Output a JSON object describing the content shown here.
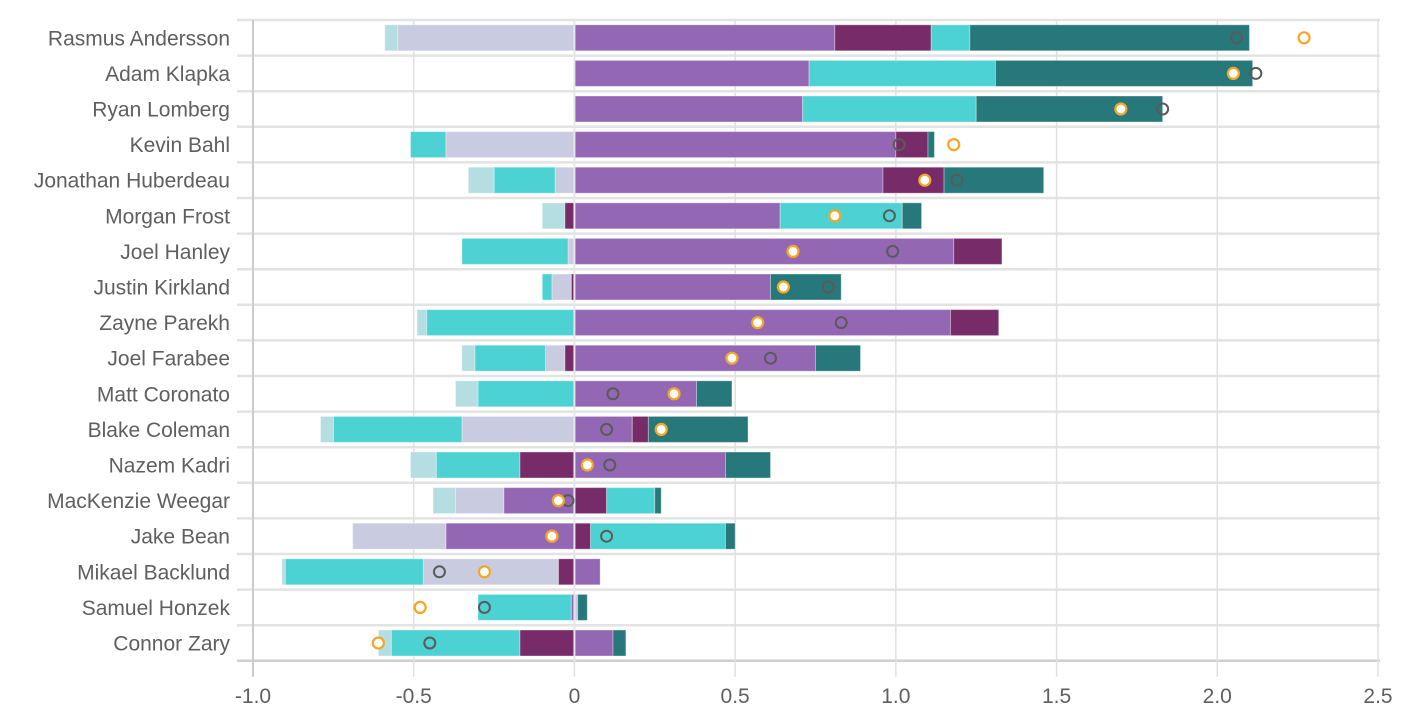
{
  "chart_data": {
    "type": "bar",
    "orientation": "horizontal",
    "stacked": "diverging",
    "title": "",
    "xlabel": "",
    "ylabel": "",
    "xlim": [
      -1.0,
      2.5
    ],
    "xticks": [
      -1.0,
      -0.5,
      0,
      0.5,
      1.0,
      1.5,
      2.0,
      2.5
    ],
    "xtick_labels": [
      "-1.0",
      "-0.5",
      "0",
      "0.5",
      "1.0",
      "1.5",
      "2.0",
      "2.5"
    ],
    "grid": true,
    "legend": "none",
    "segment_colors": {
      "A": "#9467b4",
      "B": "#772b68",
      "C": "#4dd2d4",
      "D": "#26787b",
      "E": "#c9cce0",
      "F": "#b4dee2"
    },
    "marker_colors": {
      "orange": "#f5a623",
      "grey": "#5a5a5a"
    },
    "positive_order": [
      "E",
      "A",
      "B",
      "C",
      "D"
    ],
    "negative_order": [
      "A",
      "B",
      "E",
      "C",
      "F"
    ],
    "categories": [
      "Rasmus Andersson",
      "Adam Klapka",
      "Ryan Lomberg",
      "Kevin Bahl",
      "Jonathan Huberdeau",
      "Morgan Frost",
      "Joel Hanley",
      "Justin Kirkland",
      "Zayne Parekh",
      "Joel Farabee",
      "Matt Coronato",
      "Blake Coleman",
      "Nazem Kadri",
      "MacKenzie Weegar",
      "Jake Bean",
      "Mikael Backlund",
      "Samuel Honzek",
      "Connor Zary"
    ],
    "rows": [
      {
        "pos": {
          "A": 0.81,
          "B": 0.3,
          "C": 0.12,
          "D": 0.87
        },
        "neg": {
          "E": 0.55,
          "F": 0.04
        },
        "orange": 2.27,
        "grey": 2.06
      },
      {
        "pos": {
          "A": 0.73,
          "C": 0.58,
          "D": 0.8
        },
        "neg": {},
        "orange": 2.05,
        "grey": 2.12
      },
      {
        "pos": {
          "A": 0.71,
          "C": 0.54,
          "D": 0.58
        },
        "neg": {},
        "orange": 1.7,
        "grey": 1.83
      },
      {
        "pos": {
          "A": 1.0,
          "B": 0.1,
          "D": 0.02
        },
        "neg": {
          "E": 0.4,
          "C": 0.11
        },
        "orange": 1.18,
        "grey": 1.01
      },
      {
        "pos": {
          "A": 0.96,
          "B": 0.19,
          "D": 0.31
        },
        "neg": {
          "E": 0.06,
          "C": 0.19,
          "F": 0.08
        },
        "orange": 1.09,
        "grey": 1.19
      },
      {
        "pos": {
          "A": 0.64,
          "C": 0.38,
          "D": 0.06
        },
        "neg": {
          "B": 0.03,
          "F": 0.07
        },
        "orange": 0.81,
        "grey": 0.98
      },
      {
        "pos": {
          "A": 1.18,
          "B": 0.15
        },
        "neg": {
          "E": 0.02,
          "C": 0.33
        },
        "orange": 0.68,
        "grey": 0.99
      },
      {
        "pos": {
          "A": 0.61,
          "D": 0.22
        },
        "neg": {
          "B": 0.01,
          "E": 0.06,
          "C": 0.03
        },
        "orange": 0.65,
        "grey": 0.79
      },
      {
        "pos": {
          "A": 1.17,
          "B": 0.15
        },
        "neg": {
          "C": 0.46,
          "F": 0.03
        },
        "orange": 0.57,
        "grey": 0.83
      },
      {
        "pos": {
          "A": 0.75,
          "D": 0.14
        },
        "neg": {
          "B": 0.03,
          "E": 0.06,
          "C": 0.22,
          "F": 0.04
        },
        "orange": 0.49,
        "grey": 0.61
      },
      {
        "pos": {
          "A": 0.38,
          "D": 0.11
        },
        "neg": {
          "C": 0.3,
          "F": 0.07
        },
        "orange": 0.31,
        "grey": 0.12
      },
      {
        "pos": {
          "A": 0.18,
          "B": 0.05,
          "D": 0.31
        },
        "neg": {
          "E": 0.35,
          "C": 0.4,
          "F": 0.04
        },
        "orange": 0.27,
        "grey": 0.1
      },
      {
        "pos": {
          "A": 0.47,
          "D": 0.14
        },
        "neg": {
          "B": 0.17,
          "C": 0.26,
          "F": 0.08
        },
        "orange": 0.04,
        "grey": 0.11
      },
      {
        "pos": {
          "B": 0.1,
          "C": 0.15,
          "D": 0.02
        },
        "neg": {
          "A": 0.22,
          "E": 0.15,
          "F": 0.07
        },
        "orange": -0.05,
        "grey": -0.02
      },
      {
        "pos": {
          "B": 0.05,
          "C": 0.42,
          "D": 0.03
        },
        "neg": {
          "A": 0.4,
          "E": 0.29
        },
        "orange": -0.07,
        "grey": 0.1
      },
      {
        "pos": {
          "A": 0.08
        },
        "neg": {
          "B": 0.05,
          "E": 0.42,
          "C": 0.43,
          "F": 0.01
        },
        "orange": -0.28,
        "grey": -0.42
      },
      {
        "pos": {
          "E": 0.01,
          "D": 0.03
        },
        "neg": {
          "A": 0.01,
          "C": 0.29
        },
        "orange": -0.48,
        "grey": -0.28
      },
      {
        "pos": {
          "A": 0.12,
          "D": 0.04
        },
        "neg": {
          "B": 0.17,
          "C": 0.4,
          "F": 0.04
        },
        "orange": -0.61,
        "grey": -0.45
      }
    ]
  }
}
